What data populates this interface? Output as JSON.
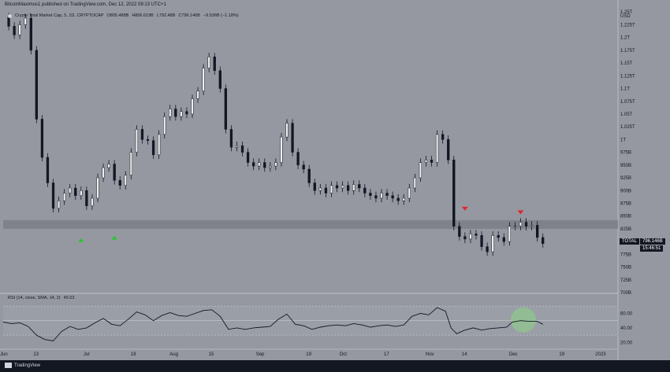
{
  "publisher": "BitcoinMaximus1 published on TradingView.com, Dec 12, 2022 09:13 UTC+1",
  "legend": {
    "title": "Crypto Total Market Cap, 5, 1D, CRYPTOCAP",
    "open": "O805.488B",
    "high": "H806.619B",
    "low": "L792.48B",
    "close": "C796.146B",
    "change": "−9.536B (−1.18%)"
  },
  "rsi_legend": {
    "label": "RSI (14, close, SMA, 14, 2)",
    "value": "45.03"
  },
  "price_label": {
    "symbol": "TOTAL",
    "price": "796.146B",
    "timer": "15:46:51"
  },
  "brand": "TradingView",
  "colors": {
    "background": "#9598a1",
    "candle": "#131722",
    "zone": "#7a7d86",
    "up_arrow": "#26c72f",
    "down_arrow": "#e0262c",
    "rsi_highlight": "#8fc98a"
  },
  "chart_data": [
    {
      "type": "candlestick",
      "title": "Crypto Total Market Cap, 5, 1D, CRYPTOCAP",
      "currency": "USD",
      "y_tick_labels": [
        "1.25T",
        "1.225T",
        "1.2T",
        "1.175T",
        "1.15T",
        "1.125T",
        "1.1T",
        "1.075T",
        "1.05T",
        "1.025T",
        "1T",
        "975B",
        "950B",
        "925B",
        "900B",
        "875B",
        "850B",
        "825B",
        "800B",
        "775B",
        "750B",
        "725B",
        "700B"
      ],
      "y_tick_values": [
        1250,
        1225,
        1200,
        1175,
        1150,
        1125,
        1100,
        1075,
        1050,
        1025,
        1000,
        975,
        950,
        925,
        900,
        875,
        850,
        825,
        800,
        775,
        750,
        725,
        700
      ],
      "ylim": [
        700,
        1255
      ],
      "x_tick_labels": [
        "Jun",
        "13",
        "Jul",
        "18",
        "Aug",
        "15",
        "Sep",
        "19",
        "Oct",
        "17",
        "Nov",
        "14",
        "Dec",
        "19",
        "2023"
      ],
      "x_tick_dates": [
        "2022-06-01",
        "2022-06-13",
        "2022-07-01",
        "2022-07-18",
        "2022-08-01",
        "2022-08-15",
        "2022-09-01",
        "2022-09-19",
        "2022-10-01",
        "2022-10-17",
        "2022-11-01",
        "2022-11-14",
        "2022-12-01",
        "2022-12-19",
        "2023-01-01"
      ],
      "xlim": [
        "2022-06-01",
        "2023-01-08"
      ],
      "support_zone": [
        825,
        842
      ],
      "series_close_by_date": [
        [
          "2022-06-01",
          1240
        ],
        [
          "2022-06-03",
          1222
        ],
        [
          "2022-06-05",
          1205
        ],
        [
          "2022-06-07",
          1225
        ],
        [
          "2022-06-09",
          1238
        ],
        [
          "2022-06-11",
          1175
        ],
        [
          "2022-06-13",
          1040
        ],
        [
          "2022-06-15",
          965
        ],
        [
          "2022-06-17",
          915
        ],
        [
          "2022-06-19",
          865
        ],
        [
          "2022-06-21",
          880
        ],
        [
          "2022-06-23",
          895
        ],
        [
          "2022-06-25",
          905
        ],
        [
          "2022-06-27",
          890
        ],
        [
          "2022-06-29",
          900
        ],
        [
          "2022-07-01",
          870
        ],
        [
          "2022-07-03",
          885
        ],
        [
          "2022-07-05",
          925
        ],
        [
          "2022-07-07",
          945
        ],
        [
          "2022-07-09",
          952
        ],
        [
          "2022-07-11",
          920
        ],
        [
          "2022-07-13",
          910
        ],
        [
          "2022-07-15",
          930
        ],
        [
          "2022-07-17",
          975
        ],
        [
          "2022-07-19",
          1020
        ],
        [
          "2022-07-21",
          1000
        ],
        [
          "2022-07-23",
          998
        ],
        [
          "2022-07-25",
          970
        ],
        [
          "2022-07-27",
          1010
        ],
        [
          "2022-07-29",
          1045
        ],
        [
          "2022-07-31",
          1060
        ],
        [
          "2022-08-02",
          1045
        ],
        [
          "2022-08-04",
          1055
        ],
        [
          "2022-08-06",
          1050
        ],
        [
          "2022-08-08",
          1080
        ],
        [
          "2022-08-10",
          1095
        ],
        [
          "2022-08-12",
          1140
        ],
        [
          "2022-08-14",
          1162
        ],
        [
          "2022-08-16",
          1135
        ],
        [
          "2022-08-18",
          1100
        ],
        [
          "2022-08-20",
          1020
        ],
        [
          "2022-08-22",
          985
        ],
        [
          "2022-08-24",
          988
        ],
        [
          "2022-08-26",
          975
        ],
        [
          "2022-08-28",
          955
        ],
        [
          "2022-08-30",
          948
        ],
        [
          "2022-09-01",
          955
        ],
        [
          "2022-09-03",
          945
        ],
        [
          "2022-09-05",
          948
        ],
        [
          "2022-09-07",
          955
        ],
        [
          "2022-09-09",
          1005
        ],
        [
          "2022-09-11",
          1032
        ],
        [
          "2022-09-13",
          975
        ],
        [
          "2022-09-15",
          950
        ],
        [
          "2022-09-17",
          942
        ],
        [
          "2022-09-19",
          915
        ],
        [
          "2022-09-21",
          900
        ],
        [
          "2022-09-23",
          905
        ],
        [
          "2022-09-25",
          895
        ],
        [
          "2022-09-27",
          910
        ],
        [
          "2022-09-29",
          905
        ],
        [
          "2022-10-01",
          910
        ],
        [
          "2022-10-03",
          900
        ],
        [
          "2022-10-05",
          912
        ],
        [
          "2022-10-07",
          905
        ],
        [
          "2022-10-09",
          895
        ],
        [
          "2022-10-11",
          890
        ],
        [
          "2022-10-13",
          885
        ],
        [
          "2022-10-15",
          895
        ],
        [
          "2022-10-17",
          890
        ],
        [
          "2022-10-19",
          885
        ],
        [
          "2022-10-21",
          880
        ],
        [
          "2022-10-23",
          885
        ],
        [
          "2022-10-25",
          905
        ],
        [
          "2022-10-27",
          925
        ],
        [
          "2022-10-29",
          955
        ],
        [
          "2022-10-31",
          960
        ],
        [
          "2022-11-02",
          955
        ],
        [
          "2022-11-04",
          1010
        ],
        [
          "2022-11-06",
          1000
        ],
        [
          "2022-11-08",
          960
        ],
        [
          "2022-11-10",
          830
        ],
        [
          "2022-11-12",
          810
        ],
        [
          "2022-11-14",
          805
        ],
        [
          "2022-11-16",
          815
        ],
        [
          "2022-11-18",
          812
        ],
        [
          "2022-11-20",
          790
        ],
        [
          "2022-11-22",
          780
        ],
        [
          "2022-11-24",
          812
        ],
        [
          "2022-11-26",
          808
        ],
        [
          "2022-11-28",
          800
        ],
        [
          "2022-11-30",
          830
        ],
        [
          "2022-12-02",
          830
        ],
        [
          "2022-12-04",
          838
        ],
        [
          "2022-12-06",
          830
        ],
        [
          "2022-12-08",
          832
        ],
        [
          "2022-12-10",
          808
        ],
        [
          "2022-12-12",
          796
        ]
      ],
      "annotations": [
        {
          "type": "arrow-up",
          "date": "2022-06-29",
          "value": 805
        },
        {
          "type": "arrow-up",
          "date": "2022-07-11",
          "value": 810
        },
        {
          "type": "arrow-down",
          "date": "2022-11-14",
          "value": 862
        },
        {
          "type": "arrow-down",
          "date": "2022-12-04",
          "value": 855
        }
      ]
    },
    {
      "type": "line",
      "title": "RSI (14, close, SMA, 14, 2)",
      "y_tick_labels": [
        "60.00",
        "40.00",
        "20.00"
      ],
      "y_tick_values": [
        60,
        40,
        20
      ],
      "ylim": [
        15,
        80
      ],
      "bands": [
        30,
        50,
        70
      ],
      "series_by_date": [
        [
          "2022-06-01",
          48
        ],
        [
          "2022-06-04",
          46
        ],
        [
          "2022-06-07",
          47
        ],
        [
          "2022-06-10",
          42
        ],
        [
          "2022-06-13",
          30
        ],
        [
          "2022-06-16",
          24
        ],
        [
          "2022-06-19",
          22
        ],
        [
          "2022-06-22",
          35
        ],
        [
          "2022-06-25",
          42
        ],
        [
          "2022-06-28",
          38
        ],
        [
          "2022-07-01",
          40
        ],
        [
          "2022-07-04",
          47
        ],
        [
          "2022-07-07",
          53
        ],
        [
          "2022-07-10",
          45
        ],
        [
          "2022-07-13",
          43
        ],
        [
          "2022-07-16",
          52
        ],
        [
          "2022-07-19",
          62
        ],
        [
          "2022-07-22",
          58
        ],
        [
          "2022-07-25",
          50
        ],
        [
          "2022-07-28",
          57
        ],
        [
          "2022-07-31",
          61
        ],
        [
          "2022-08-03",
          57
        ],
        [
          "2022-08-06",
          56
        ],
        [
          "2022-08-09",
          60
        ],
        [
          "2022-08-12",
          64
        ],
        [
          "2022-08-15",
          65
        ],
        [
          "2022-08-18",
          56
        ],
        [
          "2022-08-21",
          38
        ],
        [
          "2022-08-24",
          40
        ],
        [
          "2022-08-27",
          38
        ],
        [
          "2022-08-30",
          40
        ],
        [
          "2022-09-02",
          41
        ],
        [
          "2022-09-05",
          42
        ],
        [
          "2022-09-08",
          52
        ],
        [
          "2022-09-11",
          59
        ],
        [
          "2022-09-14",
          45
        ],
        [
          "2022-09-17",
          43
        ],
        [
          "2022-09-20",
          38
        ],
        [
          "2022-09-23",
          41
        ],
        [
          "2022-09-26",
          43
        ],
        [
          "2022-09-29",
          44
        ],
        [
          "2022-10-02",
          43
        ],
        [
          "2022-10-05",
          46
        ],
        [
          "2022-10-08",
          44
        ],
        [
          "2022-10-11",
          41
        ],
        [
          "2022-10-14",
          43
        ],
        [
          "2022-10-17",
          44
        ],
        [
          "2022-10-20",
          42
        ],
        [
          "2022-10-23",
          44
        ],
        [
          "2022-10-26",
          56
        ],
        [
          "2022-10-29",
          60
        ],
        [
          "2022-11-01",
          58
        ],
        [
          "2022-11-04",
          68
        ],
        [
          "2022-11-07",
          63
        ],
        [
          "2022-11-09",
          40
        ],
        [
          "2022-11-11",
          32
        ],
        [
          "2022-11-14",
          37
        ],
        [
          "2022-11-17",
          40
        ],
        [
          "2022-11-20",
          37
        ],
        [
          "2022-11-23",
          39
        ],
        [
          "2022-11-26",
          40
        ],
        [
          "2022-11-29",
          41
        ],
        [
          "2022-12-01",
          48
        ],
        [
          "2022-12-04",
          50
        ],
        [
          "2022-12-07",
          49
        ],
        [
          "2022-12-10",
          49
        ],
        [
          "2022-12-12",
          45
        ]
      ],
      "highlight": {
        "date": "2022-12-05",
        "value": 51
      }
    }
  ]
}
